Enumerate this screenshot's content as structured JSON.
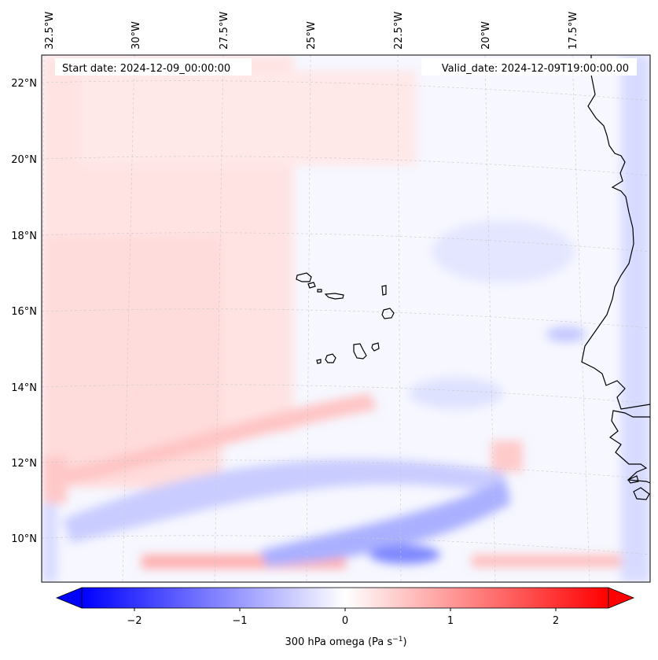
{
  "map": {
    "start_date": "Start date: 2024-12-09_00:00:00",
    "valid_date": "Valid_date: 2024-12-09T19:00:00.00",
    "lon_labels": [
      "32.5°W",
      "30°W",
      "27.5°W",
      "25°W",
      "22.5°W",
      "20°W",
      "17.5°W"
    ],
    "lat_labels": [
      "22°N",
      "20°N",
      "18°N",
      "16°N",
      "14°N",
      "12°N",
      "10°N"
    ]
  },
  "colorbar": {
    "tick_labels": [
      "−2",
      "−1",
      "0",
      "1",
      "2"
    ],
    "tick_values": [
      -2,
      -1,
      0,
      1,
      2
    ],
    "range": [
      -2.5,
      2.5
    ],
    "label": "300 hPa omega (Pa s",
    "label_sup": "−1",
    "label_end": ")"
  },
  "colors": {
    "negative": "#0000ff",
    "positive": "#ff0000",
    "neutral": "#ffffff",
    "coastline": "#000000"
  }
}
